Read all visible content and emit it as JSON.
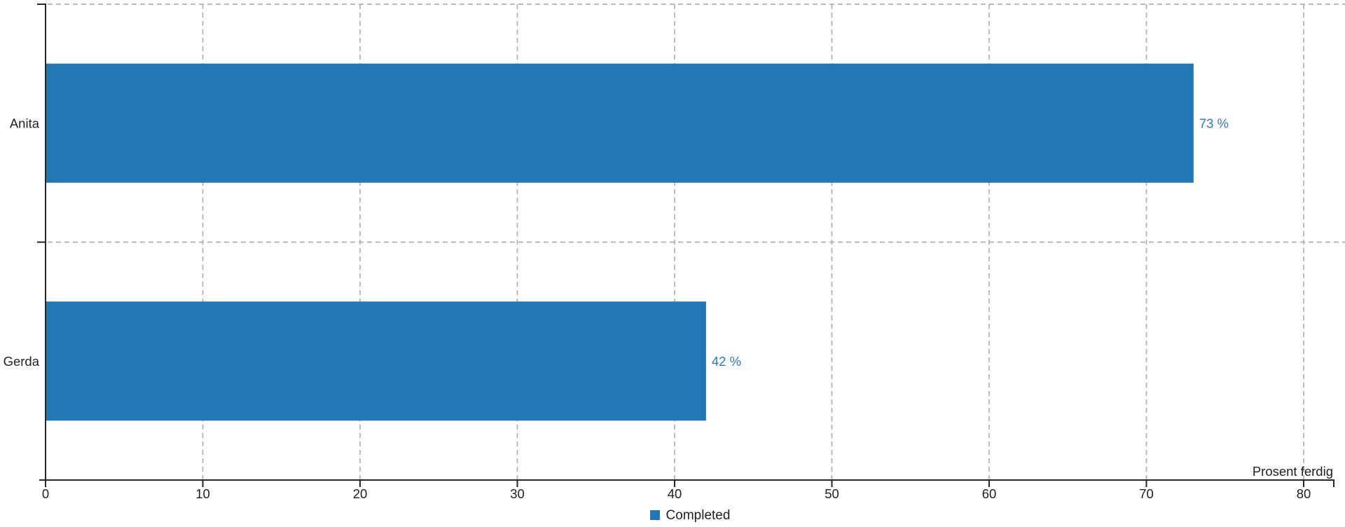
{
  "chart_data": {
    "type": "bar",
    "orientation": "horizontal",
    "title": "",
    "categories": [
      "Anita",
      "Gerda"
    ],
    "series": [
      {
        "name": "Completed",
        "values": [
          73,
          42
        ]
      }
    ],
    "value_labels": [
      "73 %",
      "42 %"
    ],
    "xlabel": "Prosent ferdig",
    "xlim": [
      0,
      82
    ],
    "xticks": [
      0,
      10,
      20,
      30,
      40,
      50,
      60,
      70,
      80
    ],
    "grid": {
      "style": "dashed",
      "color": "#b0b0b0",
      "vertical_at_ticks": true,
      "horizontal_at_category_boundaries": true
    },
    "legend": {
      "position": "bottom-center",
      "entries": [
        {
          "label": "Completed",
          "color": "#2277b5"
        }
      ]
    },
    "colors": {
      "bar": "#2277b5",
      "value_label": "#2b7cbd",
      "axis": "#262626",
      "text": "#1f1f1f"
    }
  }
}
